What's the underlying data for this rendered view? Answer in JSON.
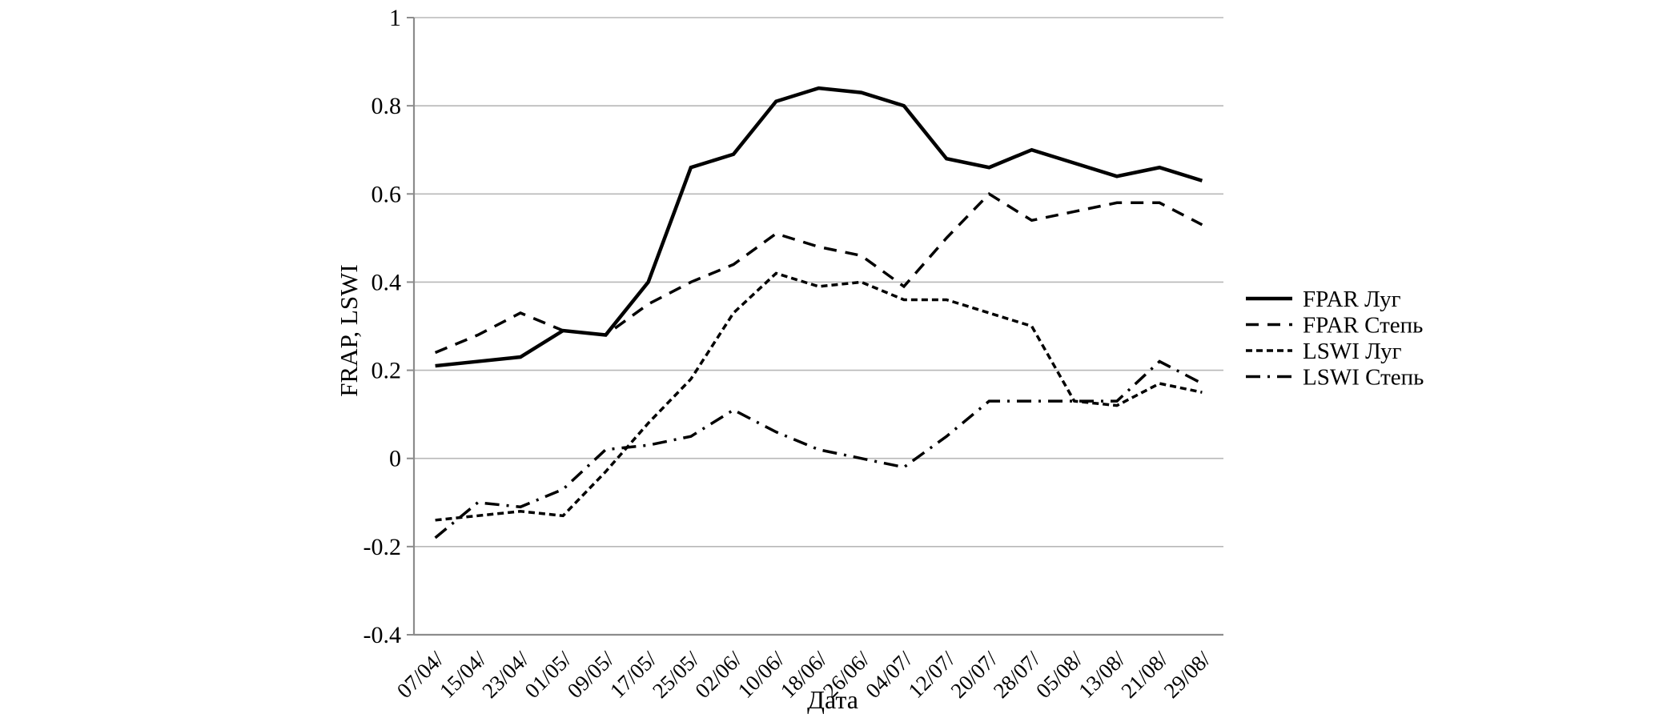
{
  "chart_data": {
    "type": "line",
    "title": "",
    "xlabel": "Дата",
    "ylabel": "FRAP, LSWI",
    "ylim": [
      -0.4,
      1
    ],
    "yticks": [
      "1",
      "0.8",
      "0.6",
      "0.4",
      "0.2",
      "0",
      "-0.2",
      "-0.4"
    ],
    "grid": true,
    "legend_position": "right",
    "categories": [
      "07/04/",
      "15/04/",
      "23/04/",
      "01/05/",
      "09/05/",
      "17/05/",
      "25/05/",
      "02/06/",
      "10/06/",
      "18/06/",
      "26/06/",
      "04/07/",
      "12/07/",
      "20/07/",
      "28/07/",
      "05/08/",
      "13/08/",
      "21/08/",
      "29/08/"
    ],
    "series": [
      {
        "name": "FPAR Луг",
        "style": "solid",
        "values": [
          0.21,
          0.22,
          0.23,
          0.29,
          0.28,
          0.4,
          0.66,
          0.69,
          0.81,
          0.84,
          0.83,
          0.8,
          0.68,
          0.66,
          0.7,
          0.67,
          0.64,
          0.66,
          0.63
        ]
      },
      {
        "name": "FPAR Степь",
        "style": "long-dash",
        "values": [
          0.24,
          0.28,
          0.33,
          0.29,
          0.28,
          0.35,
          0.4,
          0.44,
          0.51,
          0.48,
          0.46,
          0.39,
          0.5,
          0.6,
          0.54,
          0.56,
          0.58,
          0.58,
          0.53
        ]
      },
      {
        "name": "LSWI Луг",
        "style": "short-dash",
        "values": [
          -0.14,
          -0.13,
          -0.12,
          -0.13,
          -0.03,
          0.08,
          0.18,
          0.33,
          0.42,
          0.39,
          0.4,
          0.36,
          0.36,
          0.33,
          0.3,
          0.13,
          0.12,
          0.17,
          0.15
        ]
      },
      {
        "name": "LSWI Степь",
        "style": "dash-dot",
        "values": [
          -0.18,
          -0.1,
          -0.11,
          -0.07,
          0.02,
          0.03,
          0.05,
          0.11,
          0.06,
          0.02,
          0.0,
          -0.02,
          0.05,
          0.13,
          0.13,
          0.13,
          0.13,
          0.22,
          0.17
        ]
      }
    ],
    "colors": {
      "line": "#000000",
      "grid": "#b8b8b8",
      "axis": "#8c8c8c",
      "background": "#ffffff"
    }
  }
}
